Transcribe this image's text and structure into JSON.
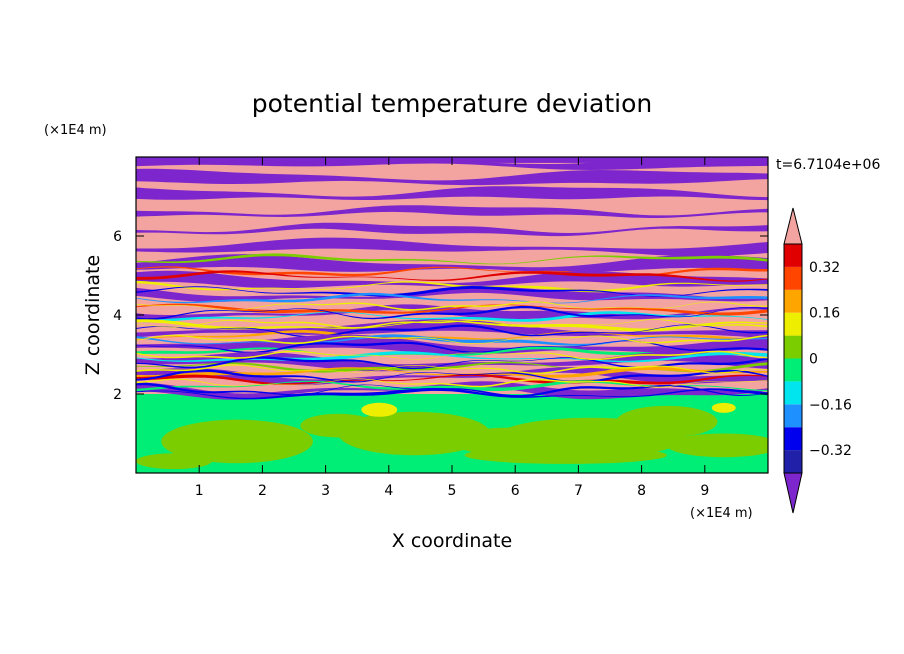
{
  "chart_data": {
    "type": "heatmap",
    "title": "potential temperature deviation",
    "time_label": "t=6.7104e+06",
    "xlabel": "X coordinate",
    "ylabel": "Z coordinate",
    "x_unit": "(×1E4 m)",
    "y_unit": "(×1E4 m)",
    "xlim": [
      0,
      10
    ],
    "ylim": [
      0,
      8
    ],
    "x_ticks": [
      1,
      2,
      3,
      4,
      5,
      6,
      7,
      8,
      9
    ],
    "y_ticks": [
      2,
      4,
      6
    ],
    "colorbar": {
      "levels": [
        -0.48,
        -0.4,
        -0.32,
        -0.24,
        -0.16,
        -0.08,
        0,
        0.08,
        0.16,
        0.24,
        0.32,
        0.4,
        0.48
      ],
      "colors": [
        "#7d26cd",
        "#2020a8",
        "#0000ee",
        "#1e90ff",
        "#00e5ee",
        "#00ee76",
        "#7ccd00",
        "#eeee00",
        "#ffa500",
        "#ff4500",
        "#e00000",
        "#f4a4a0"
      ],
      "labels": [
        "-0.32",
        "-0.16",
        "0",
        "0.16",
        "0.32"
      ],
      "label_values": [
        -0.32,
        -0.16,
        0,
        0.16,
        0.32
      ],
      "extend": "both"
    }
  }
}
